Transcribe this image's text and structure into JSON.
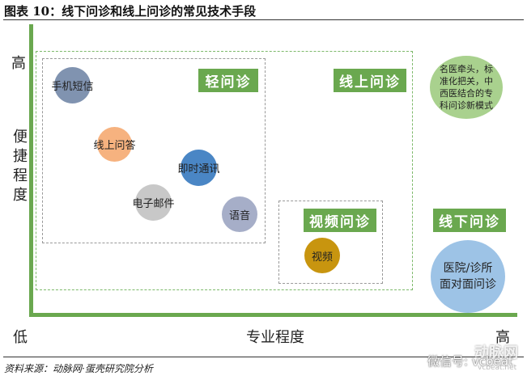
{
  "title": "图表 10：线下问诊和线上问诊的常见技术手段",
  "axes": {
    "y_high": "高",
    "y_label": [
      "便",
      "捷",
      "程",
      "度"
    ],
    "x_low": "低",
    "x_label": "专业程度",
    "x_high": "高"
  },
  "groups": {
    "light": "轻问诊",
    "online": "线上问诊",
    "video": "视频问诊",
    "offline": "线下问诊"
  },
  "bubbles": {
    "sms": "手机短信",
    "qa": "线上问答",
    "im": "即时通讯",
    "email": "电子邮件",
    "voice": "语音",
    "video": "视频",
    "famous": "名医牵头，标准化把关，中西医结合的专科问诊新模式",
    "hospital": "医院/诊所面对面问诊"
  },
  "colors": {
    "accent": "#6aa84f",
    "sms": "#8093b0",
    "qa": "#f6b27f",
    "im": "#4a86c5",
    "email": "#c8c8c8",
    "voice": "#a6aec8",
    "video": "#c8950f",
    "famous": "#a9d18e",
    "hospital": "#9dc3e6"
  },
  "source": "资料来源：动脉网·蛋壳研究院分析",
  "watermark": {
    "wechat": "微信号: vcbeat",
    "logo": "动脉网",
    "url": "vcbeat.net"
  }
}
